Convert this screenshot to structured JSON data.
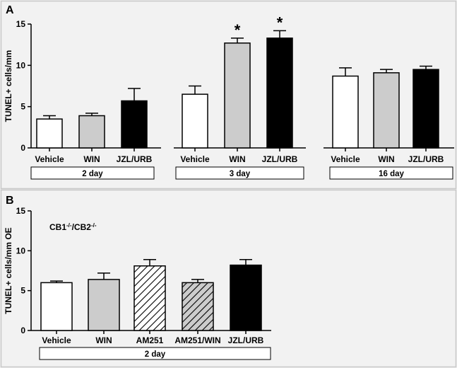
{
  "colors": {
    "white": "#ffffff",
    "gray": "#cccccc",
    "black": "#000000",
    "background": "#f2f2f2",
    "ink": "#000000"
  },
  "chart_data": [
    {
      "panel": "A",
      "type": "bar",
      "ylabel": "TUNEL+ cells/mm",
      "ylim": [
        0,
        15
      ],
      "yticks": [
        "0",
        "5",
        "10",
        "15"
      ],
      "groups": [
        {
          "label": "2 day",
          "bars": [
            {
              "category": "Vehicle",
              "value": 3.5,
              "error": 0.4,
              "fill": "white",
              "significant": false
            },
            {
              "category": "WIN",
              "value": 3.9,
              "error": 0.3,
              "fill": "gray",
              "significant": false
            },
            {
              "category": "JZL/URB",
              "value": 5.7,
              "error": 1.5,
              "fill": "black",
              "significant": false
            }
          ]
        },
        {
          "label": "3 day",
          "bars": [
            {
              "category": "Vehicle",
              "value": 6.5,
              "error": 1.0,
              "fill": "white",
              "significant": false
            },
            {
              "category": "WIN",
              "value": 12.7,
              "error": 0.6,
              "fill": "gray",
              "significant": true
            },
            {
              "category": "JZL/URB",
              "value": 13.3,
              "error": 0.9,
              "fill": "black",
              "significant": true
            }
          ]
        },
        {
          "label": "16 day",
          "bars": [
            {
              "category": "Vehicle",
              "value": 8.7,
              "error": 1.0,
              "fill": "white",
              "significant": false
            },
            {
              "category": "WIN",
              "value": 9.1,
              "error": 0.4,
              "fill": "gray",
              "significant": false
            },
            {
              "category": "JZL/URB",
              "value": 9.5,
              "error": 0.4,
              "fill": "black",
              "significant": false
            }
          ]
        }
      ],
      "significance_marker": "*"
    },
    {
      "panel": "B",
      "type": "bar",
      "ylabel": "TUNEL+ cells/mm OE",
      "ylim": [
        0,
        15
      ],
      "yticks": [
        "0",
        "5",
        "10",
        "15"
      ],
      "genotype": {
        "base1": "CB1",
        "sup1": "-/-",
        "sep": "/",
        "base2": "CB2",
        "sup2": "-/-"
      },
      "groups": [
        {
          "label": "2 day",
          "bars": [
            {
              "category": "Vehicle",
              "value": 6.0,
              "error": 0.2,
              "fill": "white"
            },
            {
              "category": "WIN",
              "value": 6.4,
              "error": 0.8,
              "fill": "gray"
            },
            {
              "category": "AM251",
              "value": 8.1,
              "error": 0.8,
              "fill": "hatch-white"
            },
            {
              "category": "AM251/WIN",
              "value": 6.0,
              "error": 0.4,
              "fill": "hatch-gray"
            },
            {
              "category": "JZL/URB",
              "value": 8.2,
              "error": 0.7,
              "fill": "black"
            }
          ]
        }
      ]
    }
  ]
}
